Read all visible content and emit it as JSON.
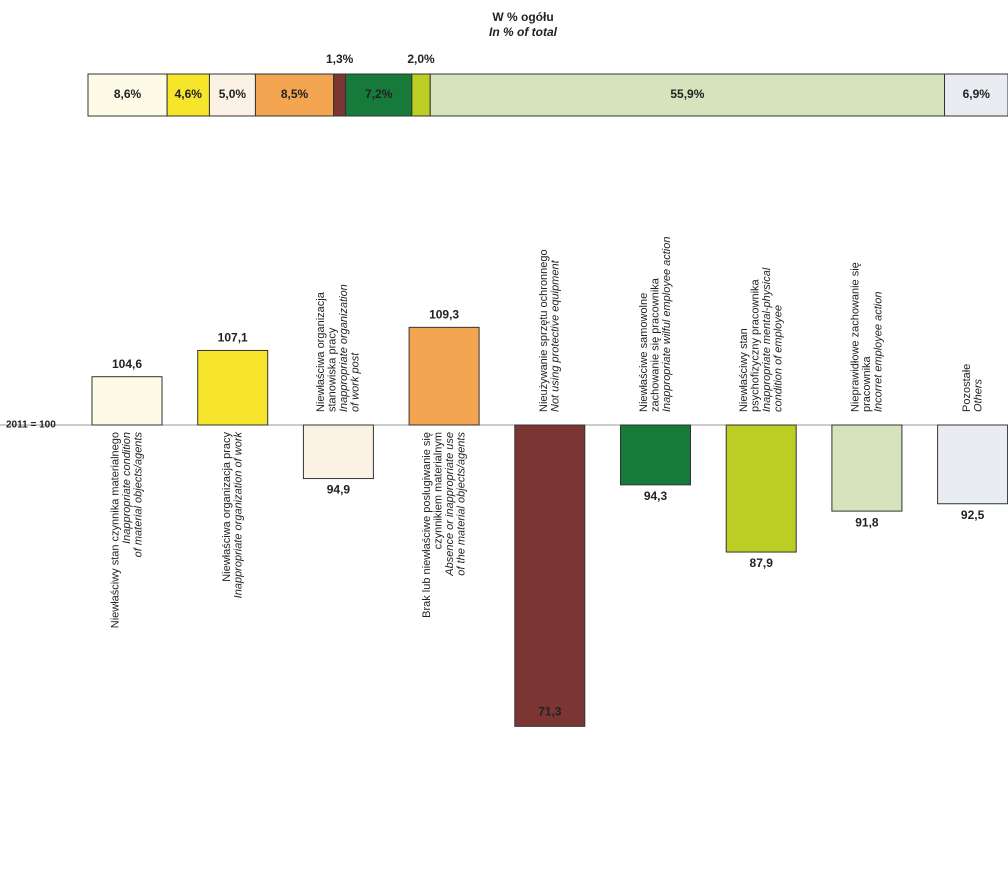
{
  "chart_data": [
    {
      "type": "stacked-bar",
      "title": "W % ogółu",
      "subtitle": "In % of total",
      "values": [
        8.6,
        4.6,
        5.0,
        8.5,
        1.3,
        7.2,
        2.0,
        55.9,
        6.9
      ],
      "value_labels": [
        "8,6%",
        "4,6%",
        "5,0%",
        "8,5%",
        "1,3%",
        "7,2%",
        "2,0%",
        "55,9%",
        "6,9%"
      ],
      "colors": [
        "#fdfbe6",
        "#f6e52a",
        "#fbf1e5",
        "#f4a552",
        "#7b3532",
        "#157a3a",
        "#bccd23",
        "#d5e4bd",
        "#e9edf1"
      ]
    },
    {
      "type": "bar",
      "baseline": 100,
      "baseline_label": "2011 = 100",
      "categories": [
        {
          "pl": [
            "Niewłaściwy stan czynnika materialnego"
          ],
          "en": [
            "Inappropriate condition",
            "of material objects/agents"
          ]
        },
        {
          "pl": [
            "Niewłaściwa organizacja pracy"
          ],
          "en": [
            "Inappropriate organization of work"
          ]
        },
        {
          "pl": [
            "Niewłaściwa organizacja",
            "stanowiska pracy"
          ],
          "en": [
            "Inappropriate organization",
            "of work post"
          ]
        },
        {
          "pl": [
            "Brak lub niewłaściwe posługiwanie się",
            "czynnikiem materialnym"
          ],
          "en": [
            "Absence or inappropriate use",
            "of the material objects/agents"
          ]
        },
        {
          "pl": [
            "Nieużywanie sprzętu ochronnego"
          ],
          "en": [
            "Not using protective equipment"
          ]
        },
        {
          "pl": [
            "Niewłaściwe samowolne",
            "zachowanie się pracownika"
          ],
          "en": [
            "Inappropriate wilful employee action"
          ]
        },
        {
          "pl": [
            "Niewłaściwy stan",
            "psychofizyczny pracownika"
          ],
          "en": [
            "Inappropriate mental-physical",
            "condition of employee"
          ]
        },
        {
          "pl": [
            "Nieprawidłowe zachowanie się",
            "pracownika"
          ],
          "en": [
            "Incorret employee action"
          ]
        },
        {
          "pl": [
            "Pozostałe"
          ],
          "en": [
            "Others"
          ]
        }
      ],
      "values": [
        104.6,
        107.1,
        94.9,
        109.3,
        71.3,
        94.3,
        87.9,
        91.8,
        92.5
      ],
      "value_labels": [
        "104,6",
        "107,1",
        "94,9",
        "109,3",
        "71,3",
        "94,3",
        "87,9",
        "91,8",
        "92,5"
      ],
      "colors": [
        "#fdfbe6",
        "#f6e52a",
        "#fbf1e5",
        "#f4a552",
        "#7b3532",
        "#157a3a",
        "#bccd23",
        "#d5e4bd",
        "#e9edf1"
      ]
    }
  ]
}
